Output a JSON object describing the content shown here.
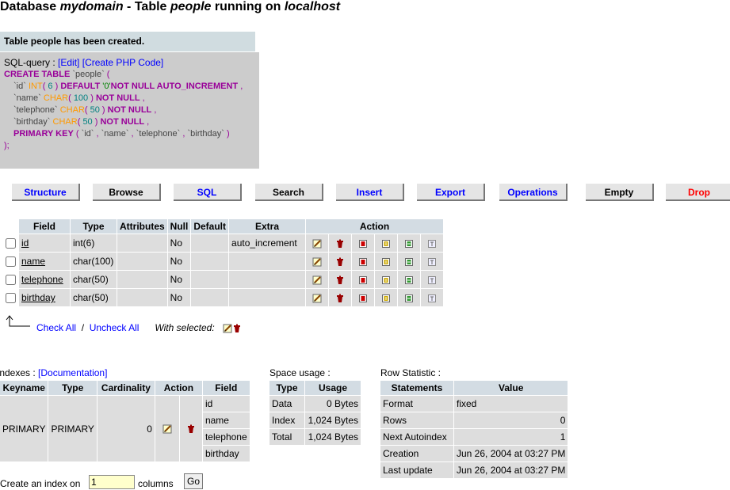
{
  "header": {
    "title": [
      {
        "text": "Database ",
        "italic": false
      },
      {
        "text": "mydomain",
        "italic": true
      },
      {
        "text": " - Table ",
        "italic": false
      },
      {
        "text": "people",
        "italic": true
      },
      {
        "text": " running on ",
        "italic": false
      },
      {
        "text": "localhost",
        "italic": true
      }
    ]
  },
  "message": "Table people has been created.",
  "sql": {
    "label": "SQL-query :",
    "links": [
      "[Edit]",
      "[Create PHP Code]"
    ],
    "lines": [
      [
        {
          "text": "CREATE TABLE",
          "color": "#990099",
          "bold": true
        },
        {
          "text": " `people` ",
          "color": "#444444",
          "bold": false
        },
        {
          "text": "(",
          "color": "#990099",
          "bold": false
        }
      ],
      [
        {
          "text": "`id` ",
          "color": "#444444",
          "bold": false
        },
        {
          "text": "INT",
          "color": "#FF9900",
          "bold": false
        },
        {
          "text": "( ",
          "color": "#990099",
          "bold": false
        },
        {
          "text": "6",
          "color": "#008080",
          "bold": false
        },
        {
          "text": " ) ",
          "color": "#990099",
          "bold": false
        },
        {
          "text": "DEFAULT ",
          "color": "#990099",
          "bold": true
        },
        {
          "text": "'0'",
          "color": "#008000",
          "bold": false
        },
        {
          "text": "NOT NULL AUTO_INCREMENT",
          "color": "#990099",
          "bold": true
        },
        {
          "text": " ,",
          "color": "#990099",
          "bold": false
        }
      ],
      [
        {
          "text": "`name` ",
          "color": "#444444",
          "bold": false
        },
        {
          "text": "CHAR",
          "color": "#FF9900",
          "bold": false
        },
        {
          "text": "( ",
          "color": "#990099",
          "bold": false
        },
        {
          "text": "100",
          "color": "#008080",
          "bold": false
        },
        {
          "text": " ) ",
          "color": "#990099",
          "bold": false
        },
        {
          "text": "NOT NULL",
          "color": "#990099",
          "bold": true
        },
        {
          "text": " ,",
          "color": "#990099",
          "bold": false
        }
      ],
      [
        {
          "text": "`telephone` ",
          "color": "#444444",
          "bold": false
        },
        {
          "text": "CHAR",
          "color": "#FF9900",
          "bold": false
        },
        {
          "text": "( ",
          "color": "#990099",
          "bold": false
        },
        {
          "text": "50",
          "color": "#008080",
          "bold": false
        },
        {
          "text": " ) ",
          "color": "#990099",
          "bold": false
        },
        {
          "text": "NOT NULL",
          "color": "#990099",
          "bold": true
        },
        {
          "text": " ,",
          "color": "#990099",
          "bold": false
        }
      ],
      [
        {
          "text": "`birthday` ",
          "color": "#444444",
          "bold": false
        },
        {
          "text": "CHAR",
          "color": "#FF9900",
          "bold": false
        },
        {
          "text": "( ",
          "color": "#990099",
          "bold": false
        },
        {
          "text": "50",
          "color": "#008080",
          "bold": false
        },
        {
          "text": " ) ",
          "color": "#990099",
          "bold": false
        },
        {
          "text": "NOT NULL",
          "color": "#990099",
          "bold": true
        },
        {
          "text": " ,",
          "color": "#990099",
          "bold": false
        }
      ],
      [
        {
          "text": "PRIMARY KEY",
          "color": "#990099",
          "bold": true
        },
        {
          "text": " ( ",
          "color": "#990099",
          "bold": false
        },
        {
          "text": "`id`",
          "color": "#444444",
          "bold": false
        },
        {
          "text": " , ",
          "color": "#990099",
          "bold": false
        },
        {
          "text": "`name`",
          "color": "#444444",
          "bold": false
        },
        {
          "text": " , ",
          "color": "#990099",
          "bold": false
        },
        {
          "text": "`telephone`",
          "color": "#444444",
          "bold": false
        },
        {
          "text": " , ",
          "color": "#990099",
          "bold": false
        },
        {
          "text": "`birthday`",
          "color": "#444444",
          "bold": false
        },
        {
          "text": " )",
          "color": "#990099",
          "bold": false
        }
      ],
      [
        {
          "text": ");",
          "color": "#990099",
          "bold": false
        }
      ]
    ]
  },
  "tabs": [
    {
      "text": "Structure",
      "color": "#0000FF"
    },
    {
      "text": "Browse",
      "color": "#000000"
    },
    {
      "text": "SQL",
      "color": "#0000FF"
    },
    {
      "text": "Search",
      "color": "#000000"
    },
    {
      "text": "Insert",
      "color": "#0000FF"
    },
    {
      "text": "Export",
      "color": "#0000FF"
    },
    {
      "text": "Operations",
      "color": "#0000FF"
    },
    {
      "text": "Empty",
      "color": "#000000"
    },
    {
      "text": "Drop",
      "color": "#FF0000"
    }
  ],
  "fields": {
    "headers": [
      "Field",
      "Type",
      "Attributes",
      "Null",
      "Default",
      "Extra",
      "Action"
    ],
    "rows": [
      {
        "field": "id",
        "type": "int(6)",
        "null": "No",
        "extra": "auto_increment"
      },
      {
        "field": "name",
        "type": "char(100)",
        "null": "No"
      },
      {
        "field": "telephone",
        "type": "char(50)",
        "null": "No"
      },
      {
        "field": "birthday",
        "type": "char(50)",
        "null": "No"
      }
    ]
  },
  "selection": {
    "check_all": "Check All",
    "separator": "/",
    "uncheck_all": "Uncheck All",
    "with_selected": "With selected:"
  },
  "indexes": {
    "label": "Indexes :",
    "link": "[Documentation]",
    "headers": [
      "Keyname",
      "Type",
      "Cardinality",
      "Action",
      "Field"
    ],
    "row": {
      "keyname": "PRIMARY",
      "type": "PRIMARY",
      "cardinality": 0,
      "fields": [
        "id",
        "name",
        "telephone",
        "birthday"
      ]
    }
  },
  "space_usage": {
    "label": "Space usage :",
    "headers": [
      "Type",
      "Usage"
    ],
    "rows": [
      {
        "type": "Data",
        "usage": "0 Bytes"
      },
      {
        "type": "Index",
        "usage": "1,024 Bytes"
      },
      {
        "type": "Total",
        "usage": "1,024 Bytes"
      }
    ]
  },
  "row_statistic": {
    "label": "Row Statistic :",
    "headers": [
      "Statements",
      "Value"
    ],
    "rows": [
      {
        "statement": "Format",
        "value": "fixed"
      },
      {
        "statement": "Rows",
        "value": "0"
      },
      {
        "statement": "Next Autoindex",
        "value": "1"
      },
      {
        "statement": "Creation",
        "value": "Jun 26, 2004 at 03:27 PM"
      },
      {
        "statement": "Last update",
        "value": "Jun 26, 2004 at 03:27 PM"
      }
    ]
  },
  "create_index": {
    "before": "Create an index on",
    "input": "1",
    "after": "columns",
    "button": "Go"
  }
}
